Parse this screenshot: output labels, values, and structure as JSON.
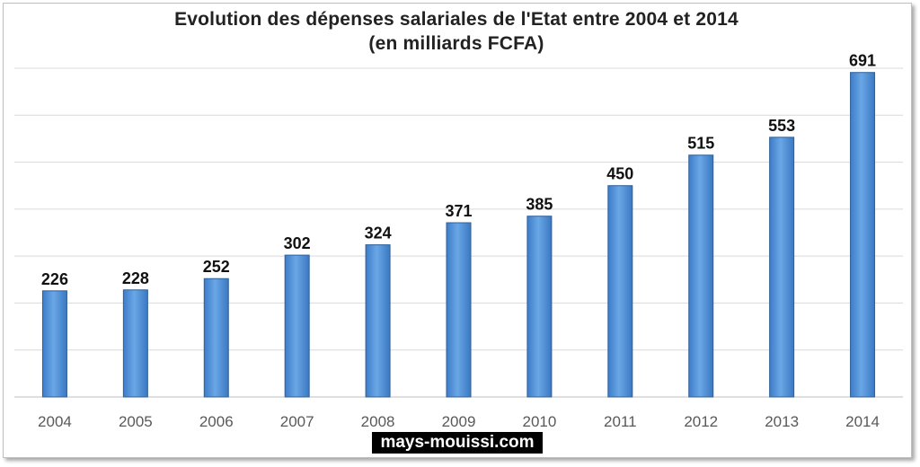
{
  "chart_data": {
    "type": "bar",
    "title": "Evolution des dépenses salariales de l'Etat entre 2004 et 2014",
    "subtitle": "(en milliards FCFA)",
    "categories": [
      "2004",
      "2005",
      "2006",
      "2007",
      "2008",
      "2009",
      "2010",
      "2011",
      "2012",
      "2013",
      "2014"
    ],
    "values": [
      226,
      228,
      252,
      302,
      324,
      371,
      385,
      450,
      515,
      553,
      691
    ],
    "xlabel": "",
    "ylabel": "",
    "ylim": [
      0,
      700
    ],
    "grid": true,
    "legend": "none",
    "bar_color": "#5b9bd5",
    "data_labels": true
  },
  "watermark": "mays-mouissi.com"
}
